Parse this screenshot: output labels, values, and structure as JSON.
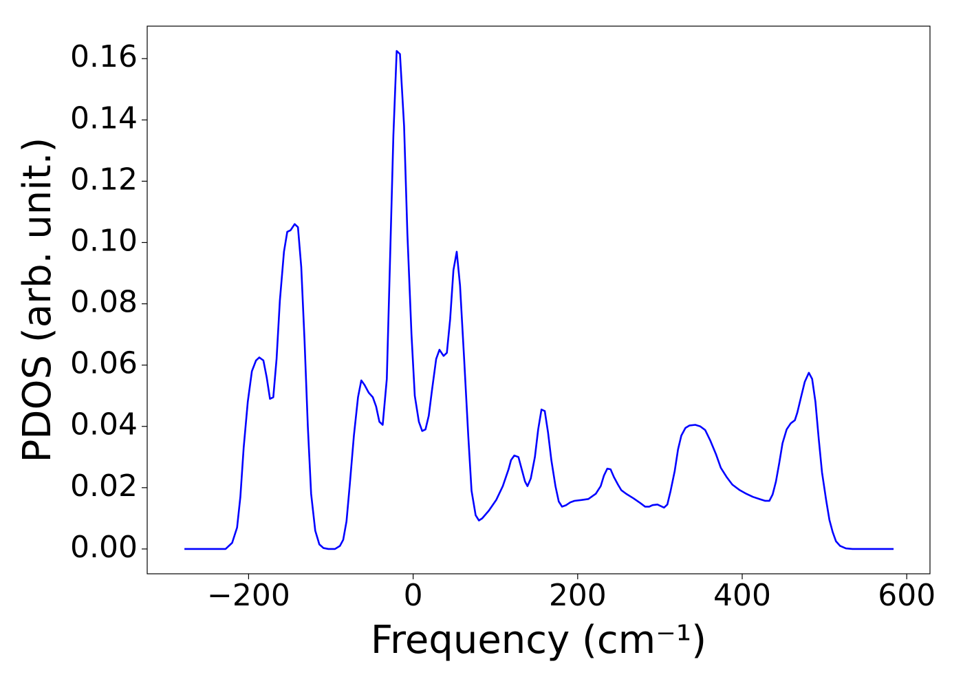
{
  "chart_data": {
    "type": "line",
    "xlabel": "Frequency (cm⁻¹)",
    "ylabel": "PDOS (arb. unit.)",
    "xlim": [
      -323.25,
      628.25
    ],
    "ylim": [
      -0.0081,
      0.1706
    ],
    "xticks": [
      {
        "value": -200,
        "label": "−200"
      },
      0,
      200,
      400,
      600
    ],
    "yticks": [
      {
        "value": 0,
        "label": "0.00"
      },
      {
        "value": 0.02,
        "label": "0.02"
      },
      {
        "value": 0.04,
        "label": "0.04"
      },
      {
        "value": 0.06,
        "label": "0.06"
      },
      {
        "value": 0.08,
        "label": "0.08"
      },
      {
        "value": 0.1,
        "label": "0.10"
      },
      {
        "value": 0.12,
        "label": "0.12"
      },
      {
        "value": 0.14,
        "label": "0.14"
      },
      {
        "value": 0.16,
        "label": "0.16"
      }
    ],
    "x": [
      -278,
      -228,
      -220,
      -214,
      -210,
      -206,
      -201,
      -196,
      -191,
      -187,
      -182,
      -178,
      -174,
      -170,
      -166,
      -162,
      -157,
      -153,
      -149,
      -144,
      -140,
      -136,
      -132,
      -128,
      -124,
      -119,
      -114,
      -109,
      -103,
      -95,
      -89,
      -85,
      -81,
      -77,
      -72,
      -67,
      -63,
      -59,
      -54,
      -49,
      -45,
      -41,
      -37,
      -32,
      -28,
      -24,
      -20,
      -16,
      -11,
      -7,
      -2,
      2,
      7,
      11,
      15,
      19,
      23,
      28,
      32,
      37,
      41,
      45,
      49,
      53,
      57,
      62,
      67,
      71,
      76,
      80,
      84,
      92,
      101,
      109,
      116,
      119,
      123,
      128,
      132,
      136,
      139,
      143,
      148,
      152,
      156,
      160,
      164,
      168,
      173,
      177,
      181,
      186,
      191,
      196,
      205,
      213,
      222,
      228,
      232,
      236,
      240,
      244,
      249,
      253,
      259,
      268,
      276,
      282,
      287,
      291,
      297,
      305,
      309,
      313,
      318,
      322,
      326,
      331,
      336,
      343,
      349,
      355,
      361,
      368,
      374,
      381,
      388,
      397,
      405,
      413,
      422,
      428,
      433,
      437,
      441,
      445,
      449,
      454,
      459,
      464,
      467,
      471,
      476,
      481,
      485,
      489,
      493,
      497,
      502,
      506,
      510,
      514,
      519,
      526,
      534,
      584
    ],
    "series": [
      {
        "name": "PDOS",
        "color": "#0000ff",
        "values": [
          0,
          0,
          0.002,
          0.007,
          0.017,
          0.033,
          0.048,
          0.058,
          0.0615,
          0.0625,
          0.0615,
          0.056,
          0.049,
          0.0495,
          0.062,
          0.081,
          0.097,
          0.1035,
          0.104,
          0.106,
          0.105,
          0.092,
          0.068,
          0.04,
          0.018,
          0.006,
          0.0015,
          0.0003,
          0,
          0,
          0.001,
          0.003,
          0.009,
          0.021,
          0.037,
          0.0495,
          0.055,
          0.0535,
          0.051,
          0.0495,
          0.0465,
          0.0415,
          0.0405,
          0.0555,
          0.095,
          0.135,
          0.1625,
          0.1615,
          0.138,
          0.103,
          0.07,
          0.05,
          0.0415,
          0.0385,
          0.039,
          0.0435,
          0.052,
          0.062,
          0.065,
          0.063,
          0.064,
          0.075,
          0.091,
          0.097,
          0.086,
          0.062,
          0.037,
          0.019,
          0.011,
          0.0093,
          0.01,
          0.0125,
          0.016,
          0.0205,
          0.026,
          0.029,
          0.0305,
          0.03,
          0.026,
          0.022,
          0.0205,
          0.023,
          0.03,
          0.039,
          0.0455,
          0.045,
          0.038,
          0.029,
          0.0205,
          0.0155,
          0.0138,
          0.0143,
          0.0152,
          0.0157,
          0.016,
          0.0163,
          0.018,
          0.0205,
          0.024,
          0.0262,
          0.026,
          0.0235,
          0.021,
          0.0192,
          0.018,
          0.0165,
          0.015,
          0.0138,
          0.0138,
          0.0143,
          0.0145,
          0.0135,
          0.0145,
          0.019,
          0.0255,
          0.0325,
          0.037,
          0.0395,
          0.0403,
          0.0405,
          0.04,
          0.0388,
          0.0355,
          0.031,
          0.0265,
          0.0235,
          0.021,
          0.0192,
          0.018,
          0.017,
          0.0162,
          0.0157,
          0.0157,
          0.0178,
          0.022,
          0.028,
          0.0345,
          0.039,
          0.041,
          0.042,
          0.0445,
          0.049,
          0.0545,
          0.0575,
          0.0555,
          0.048,
          0.036,
          0.025,
          0.016,
          0.0095,
          0.0055,
          0.0025,
          0.001,
          0.0002,
          0,
          0
        ]
      }
    ]
  }
}
